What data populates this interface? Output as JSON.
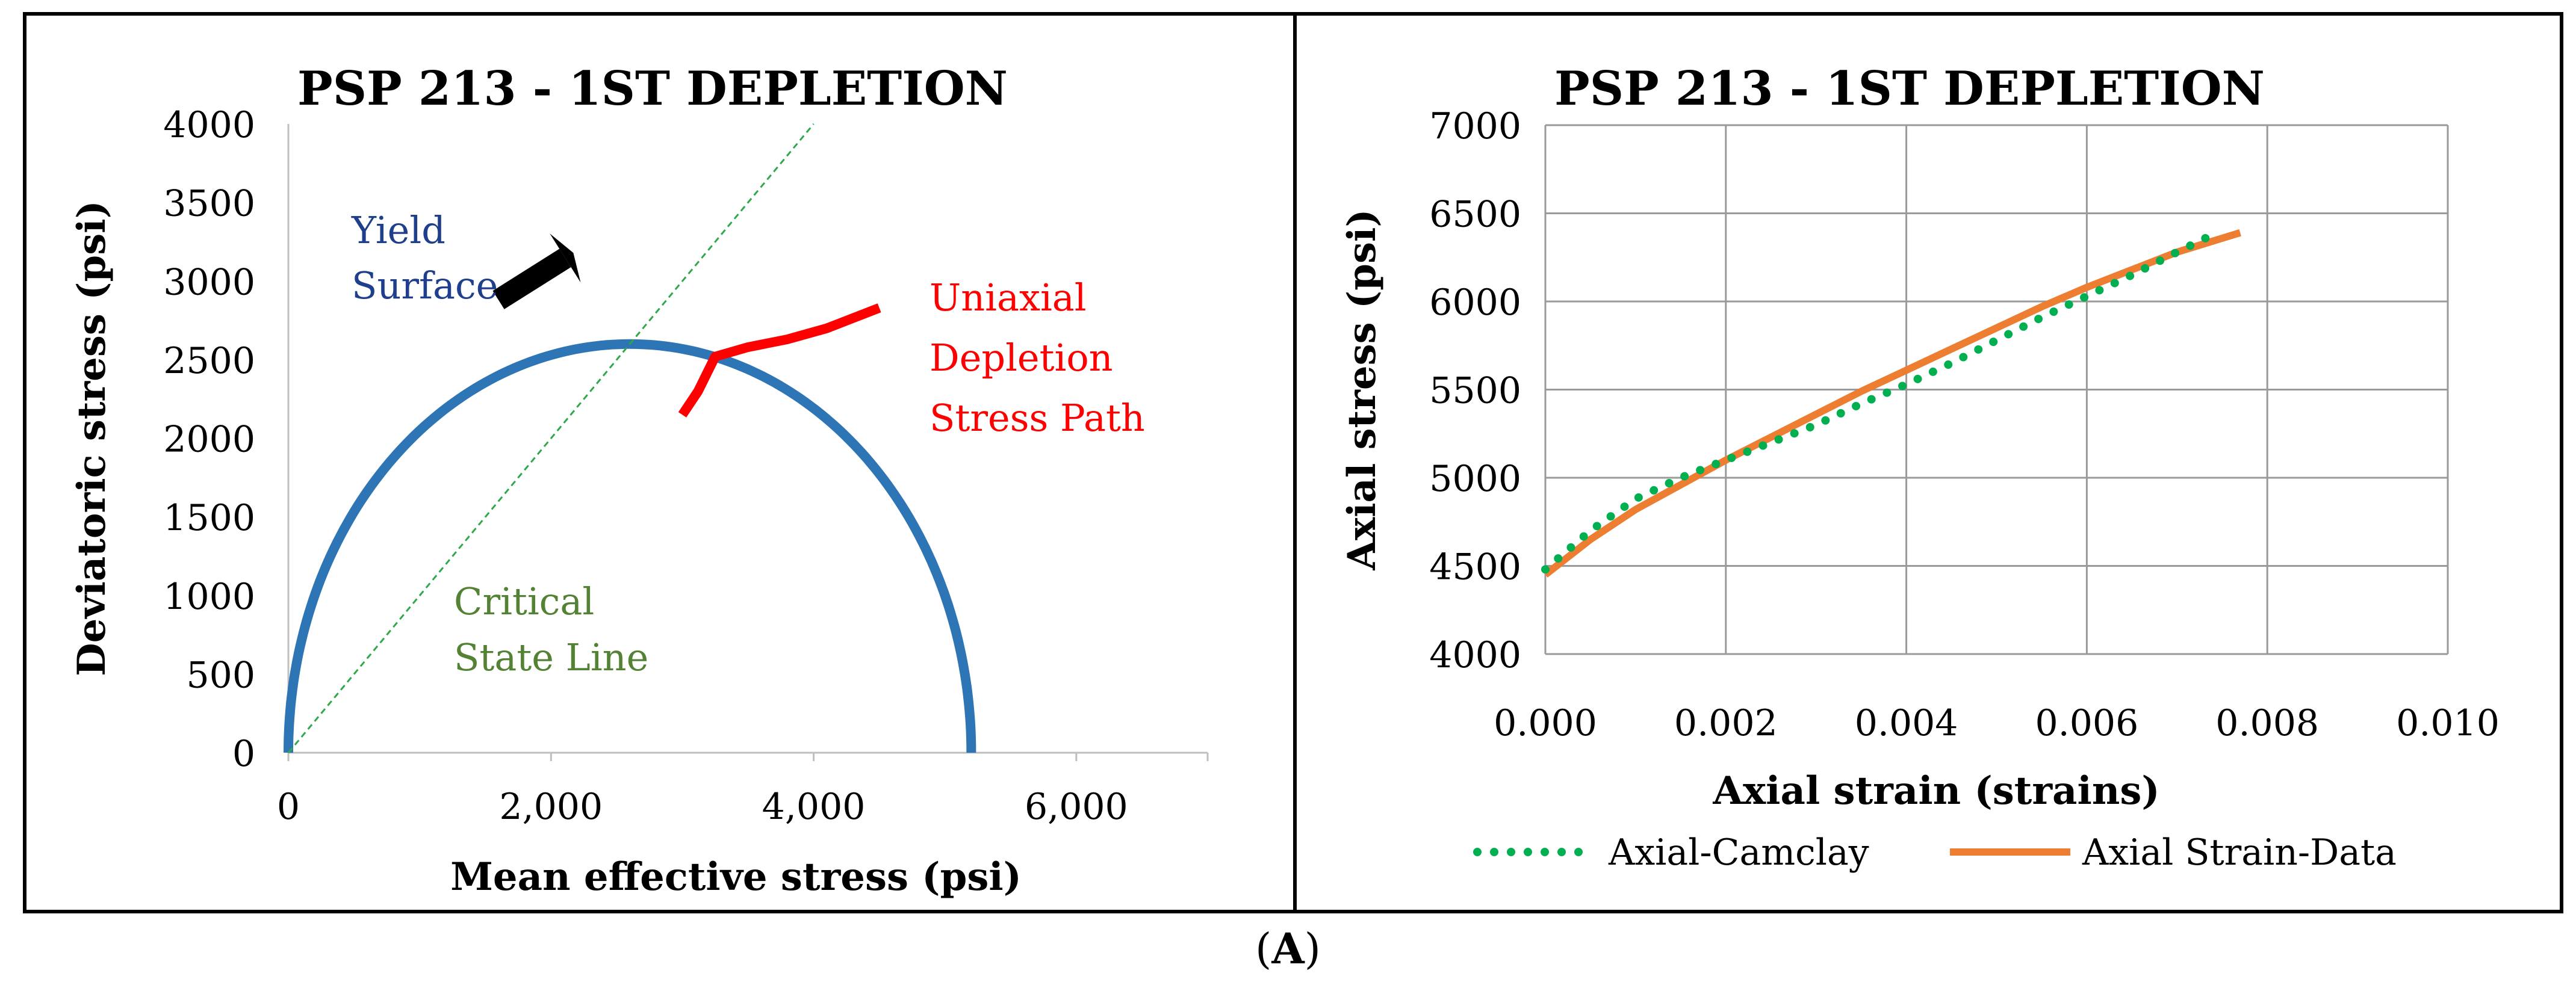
{
  "caption": "(A)",
  "chart_data": [
    {
      "type": "line",
      "title": "PSP 213 - 1ST DEPLETION",
      "xlabel": "Mean effective stress (psi)",
      "ylabel": "Deviatoric stress (psi)",
      "xlim": [
        0,
        7000
      ],
      "ylim": [
        0,
        4000
      ],
      "xticks": [
        0,
        2000,
        4000,
        6000
      ],
      "xtick_labels": [
        "0",
        "2,000",
        "4,000",
        "6,000"
      ],
      "yticks": [
        0,
        500,
        1000,
        1500,
        2000,
        2500,
        3000,
        3500,
        4000
      ],
      "ytick_labels": [
        "0",
        "500",
        "1000",
        "1500",
        "2000",
        "2500",
        "3000",
        "3500",
        "4000"
      ],
      "grid": false,
      "series": [
        {
          "name": "Yield Surface",
          "kind": "ellipse",
          "color": "#2E75B6",
          "center_p": 2600,
          "half_width_p": 2600,
          "peak_q": 2600
        },
        {
          "name": "Critical State Line",
          "kind": "dashed-line",
          "color": "#2EA84A",
          "x": [
            0,
            4000
          ],
          "y": [
            0,
            4000
          ]
        },
        {
          "name": "Uniaxial Depletion Stress Path",
          "kind": "line",
          "color": "#FF0000",
          "x": [
            3000,
            3120,
            3250,
            3500,
            3800,
            4100,
            4500
          ],
          "y": [
            2150,
            2300,
            2520,
            2580,
            2630,
            2700,
            2830
          ]
        }
      ],
      "annotations": {
        "yield_label": [
          "Yield",
          "Surface"
        ],
        "yield_color": "#1F3F8C",
        "csl_label": [
          "Critical",
          "State Line"
        ],
        "csl_color": "#548235",
        "path_label": [
          "Uniaxial",
          "Depletion",
          "Stress Path"
        ],
        "path_color": "#FF0000",
        "arrow": {
          "from": [
            1600,
            2880
          ],
          "to": [
            2170,
            3180
          ],
          "color": "#000000"
        }
      }
    },
    {
      "type": "line",
      "title": "PSP 213 - 1ST DEPLETION",
      "xlabel": "Axial strain (strains)",
      "ylabel": "Axial stress (psi)",
      "xlim": [
        0,
        0.01
      ],
      "ylim": [
        4000,
        7000
      ],
      "xticks": [
        0,
        0.002,
        0.004,
        0.006,
        0.008,
        0.01
      ],
      "xtick_labels": [
        "0.000",
        "0.002",
        "0.004",
        "0.006",
        "0.008",
        "0.010"
      ],
      "yticks": [
        4000,
        4500,
        5000,
        5500,
        6000,
        6500,
        7000
      ],
      "ytick_labels": [
        "4000",
        "4500",
        "5000",
        "5500",
        "6000",
        "6500",
        "7000"
      ],
      "grid": true,
      "legend_position": "bottom",
      "series": [
        {
          "name": "Axial-Camclay",
          "style": "dotted",
          "color": "#00B050",
          "x": [
            0,
            0.0005,
            0.001,
            0.0015,
            0.002,
            0.0025,
            0.003,
            0.0035,
            0.004,
            0.0045,
            0.005,
            0.0055,
            0.006,
            0.0065,
            0.007,
            0.0074
          ],
          "y": [
            4480,
            4700,
            4880,
            5000,
            5100,
            5200,
            5300,
            5420,
            5530,
            5650,
            5780,
            5910,
            6030,
            6150,
            6280,
            6380
          ]
        },
        {
          "name": "Axial Strain-Data",
          "style": "solid",
          "color": "#ED7D31",
          "x": [
            0,
            0.0005,
            0.001,
            0.0015,
            0.002,
            0.0025,
            0.003,
            0.0035,
            0.004,
            0.0045,
            0.005,
            0.0055,
            0.006,
            0.0065,
            0.007,
            0.0077
          ],
          "y": [
            4450,
            4650,
            4820,
            4960,
            5100,
            5230,
            5360,
            5490,
            5610,
            5730,
            5850,
            5970,
            6080,
            6180,
            6280,
            6390
          ]
        }
      ]
    }
  ]
}
